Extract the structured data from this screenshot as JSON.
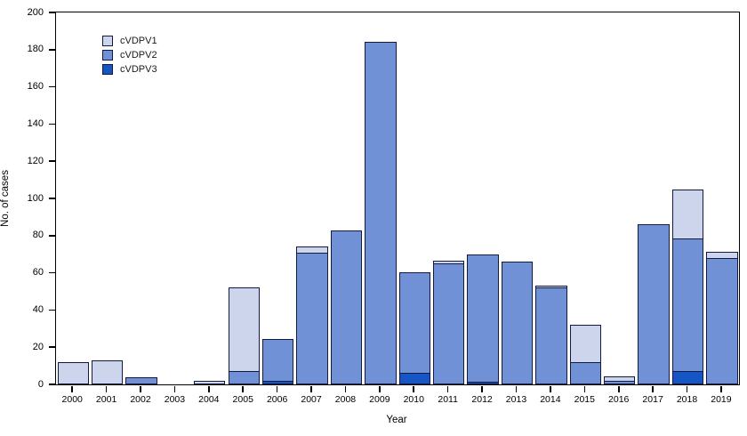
{
  "chart_data": {
    "type": "bar",
    "stacked": true,
    "title": "",
    "xlabel": "Year",
    "ylabel": "No. of cases",
    "ylim": [
      0,
      200
    ],
    "y_ticks": [
      0,
      20,
      40,
      60,
      80,
      100,
      120,
      140,
      160,
      180,
      200
    ],
    "grid": false,
    "legend_position": "top-left-inside",
    "axis_color": "#000000",
    "bar_border_color": "#131a42",
    "categories": [
      "2000",
      "2001",
      "2002",
      "2003",
      "2004",
      "2005",
      "2006",
      "2007",
      "2008",
      "2009",
      "2010",
      "2011",
      "2012",
      "2013",
      "2014",
      "2015",
      "2016",
      "2017",
      "2018",
      "2019"
    ],
    "series": [
      {
        "name": "cVDPV1",
        "color": "#cdd5ed",
        "values": [
          12,
          13,
          0,
          0,
          2,
          46,
          0,
          4,
          0,
          0,
          0,
          2,
          0,
          0,
          2,
          21,
          3,
          0,
          27,
          4
        ]
      },
      {
        "name": "cVDPV2",
        "color": "#7191d6",
        "values": [
          0,
          0,
          4,
          0,
          0,
          7,
          23,
          71,
          83,
          184,
          55,
          65,
          69,
          66,
          52,
          12,
          2,
          86,
          72,
          68
        ]
      },
      {
        "name": "cVDPV3",
        "color": "#1656c4",
        "values": [
          0,
          0,
          0,
          0,
          0,
          0,
          2,
          0,
          0,
          0,
          6,
          0,
          1,
          0,
          0,
          0,
          0,
          0,
          7,
          0
        ]
      }
    ],
    "stack_order_bottom_to_top": [
      "cVDPV3",
      "cVDPV2",
      "cVDPV1"
    ],
    "totals": [
      12,
      13,
      4,
      0,
      2,
      53,
      25,
      75,
      83,
      184,
      61,
      67,
      70,
      66,
      54,
      33,
      5,
      86,
      106,
      72
    ]
  }
}
